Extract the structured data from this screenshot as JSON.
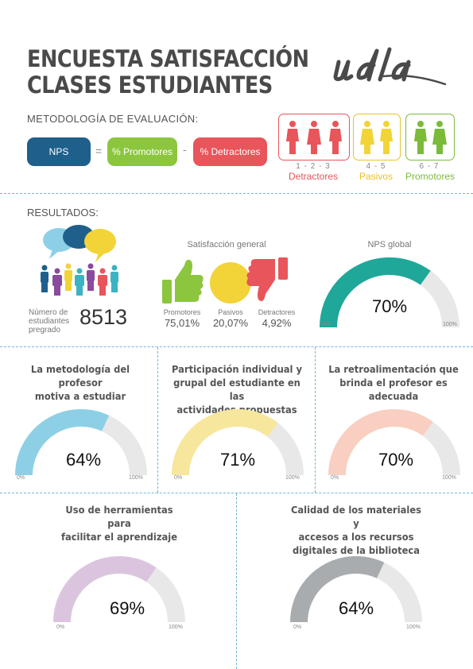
{
  "header": {
    "title_line1": "ENCUESTA SATISFACCIÓN",
    "title_line2": "CLASES ESTUDIANTES",
    "logo_text": "udla"
  },
  "methodology": {
    "heading": "METODOLOGÍA DE EVALUACIÓN:",
    "nps": "NPS",
    "equals": "=",
    "promoters": "% Promotores",
    "minus": "-",
    "detractors": "% Detractores"
  },
  "scale_legend": [
    {
      "range": "1 - 2 - 3",
      "label": "Detractores",
      "color": "#e8555a"
    },
    {
      "range": "4 - 5",
      "label": "Pasivos",
      "color": "#e8c22a"
    },
    {
      "range": "6 - 7",
      "label": "Promotores",
      "color": "#7cba3a"
    }
  ],
  "results": {
    "heading": "RESULTADOS:",
    "students_label_1": "Número de",
    "students_label_2": "estudiantes",
    "students_label_3": "pregrado",
    "students_count": "8513",
    "satisfaction_title": "Satisfacción general",
    "satisfaction": [
      {
        "label": "Promotores",
        "value": "75,01%",
        "icon": "thumbs-up-icon",
        "color": "#8cc63f"
      },
      {
        "label": "Pasivos",
        "value": "20,07%",
        "icon": "neutral-circle-icon",
        "color": "#f2d438"
      },
      {
        "label": "Detractores",
        "value": "4,92%",
        "icon": "thumbs-down-icon",
        "color": "#e8555a"
      }
    ],
    "nps_title": "NPS global"
  },
  "gauges": [
    {
      "key": "nps",
      "title": "",
      "value": 70,
      "display": "70%",
      "color": "#1fa79a",
      "min_label": "0%",
      "max_label": "100%"
    },
    {
      "key": "g1",
      "title": "La metodología del profesor motiva a estudiar",
      "value": 64,
      "display": "64%",
      "color": "#8dd0e6",
      "min_label": "0%",
      "max_label": "100%"
    },
    {
      "key": "g2",
      "title": "Participación individual y grupal del estudiante en las actividades propuestas",
      "value": 71,
      "display": "71%",
      "color": "#f7e79c",
      "min_label": "0%",
      "max_label": "100%"
    },
    {
      "key": "g3",
      "title": "La retroalimentación que brinda el profesor es adecuada",
      "value": 70,
      "display": "70%",
      "color": "#f8cfc0",
      "min_label": "0%",
      "max_label": "100%"
    },
    {
      "key": "g4",
      "title": "Uso de herramientas para facilitar el aprendizaje",
      "value": 69,
      "display": "69%",
      "color": "#dbc5de",
      "min_label": "0%",
      "max_label": "100%"
    },
    {
      "key": "g5",
      "title": "Calidad de los materiales y accesos a los recursos digitales de la biblioteca",
      "value": 64,
      "display": "64%",
      "color": "#a8acaf",
      "min_label": "0%",
      "max_label": "100%"
    }
  ],
  "gauge_titles": {
    "g1_l1": "La metodología del profesor",
    "g1_l2": "motiva a estudiar",
    "g2_l1": "Participación individual y",
    "g2_l2": "grupal del estudiante en las",
    "g2_l3": "actividades propuestas",
    "g3_l1": "La retroalimentación que",
    "g3_l2": "brinda el profesor es",
    "g3_l3": "adecuada",
    "g4_l1": "Uso de herramientas para",
    "g4_l2": "facilitar el aprendizaje",
    "g5_l1": "Calidad de los materiales y",
    "g5_l2": "accesos a los recursos",
    "g5_l3": "digitales de la biblioteca"
  },
  "colors": {
    "gauge_track": "#e8e8e8",
    "divider": "#6fb6d8",
    "nps_pill": "#1f5f8b"
  }
}
